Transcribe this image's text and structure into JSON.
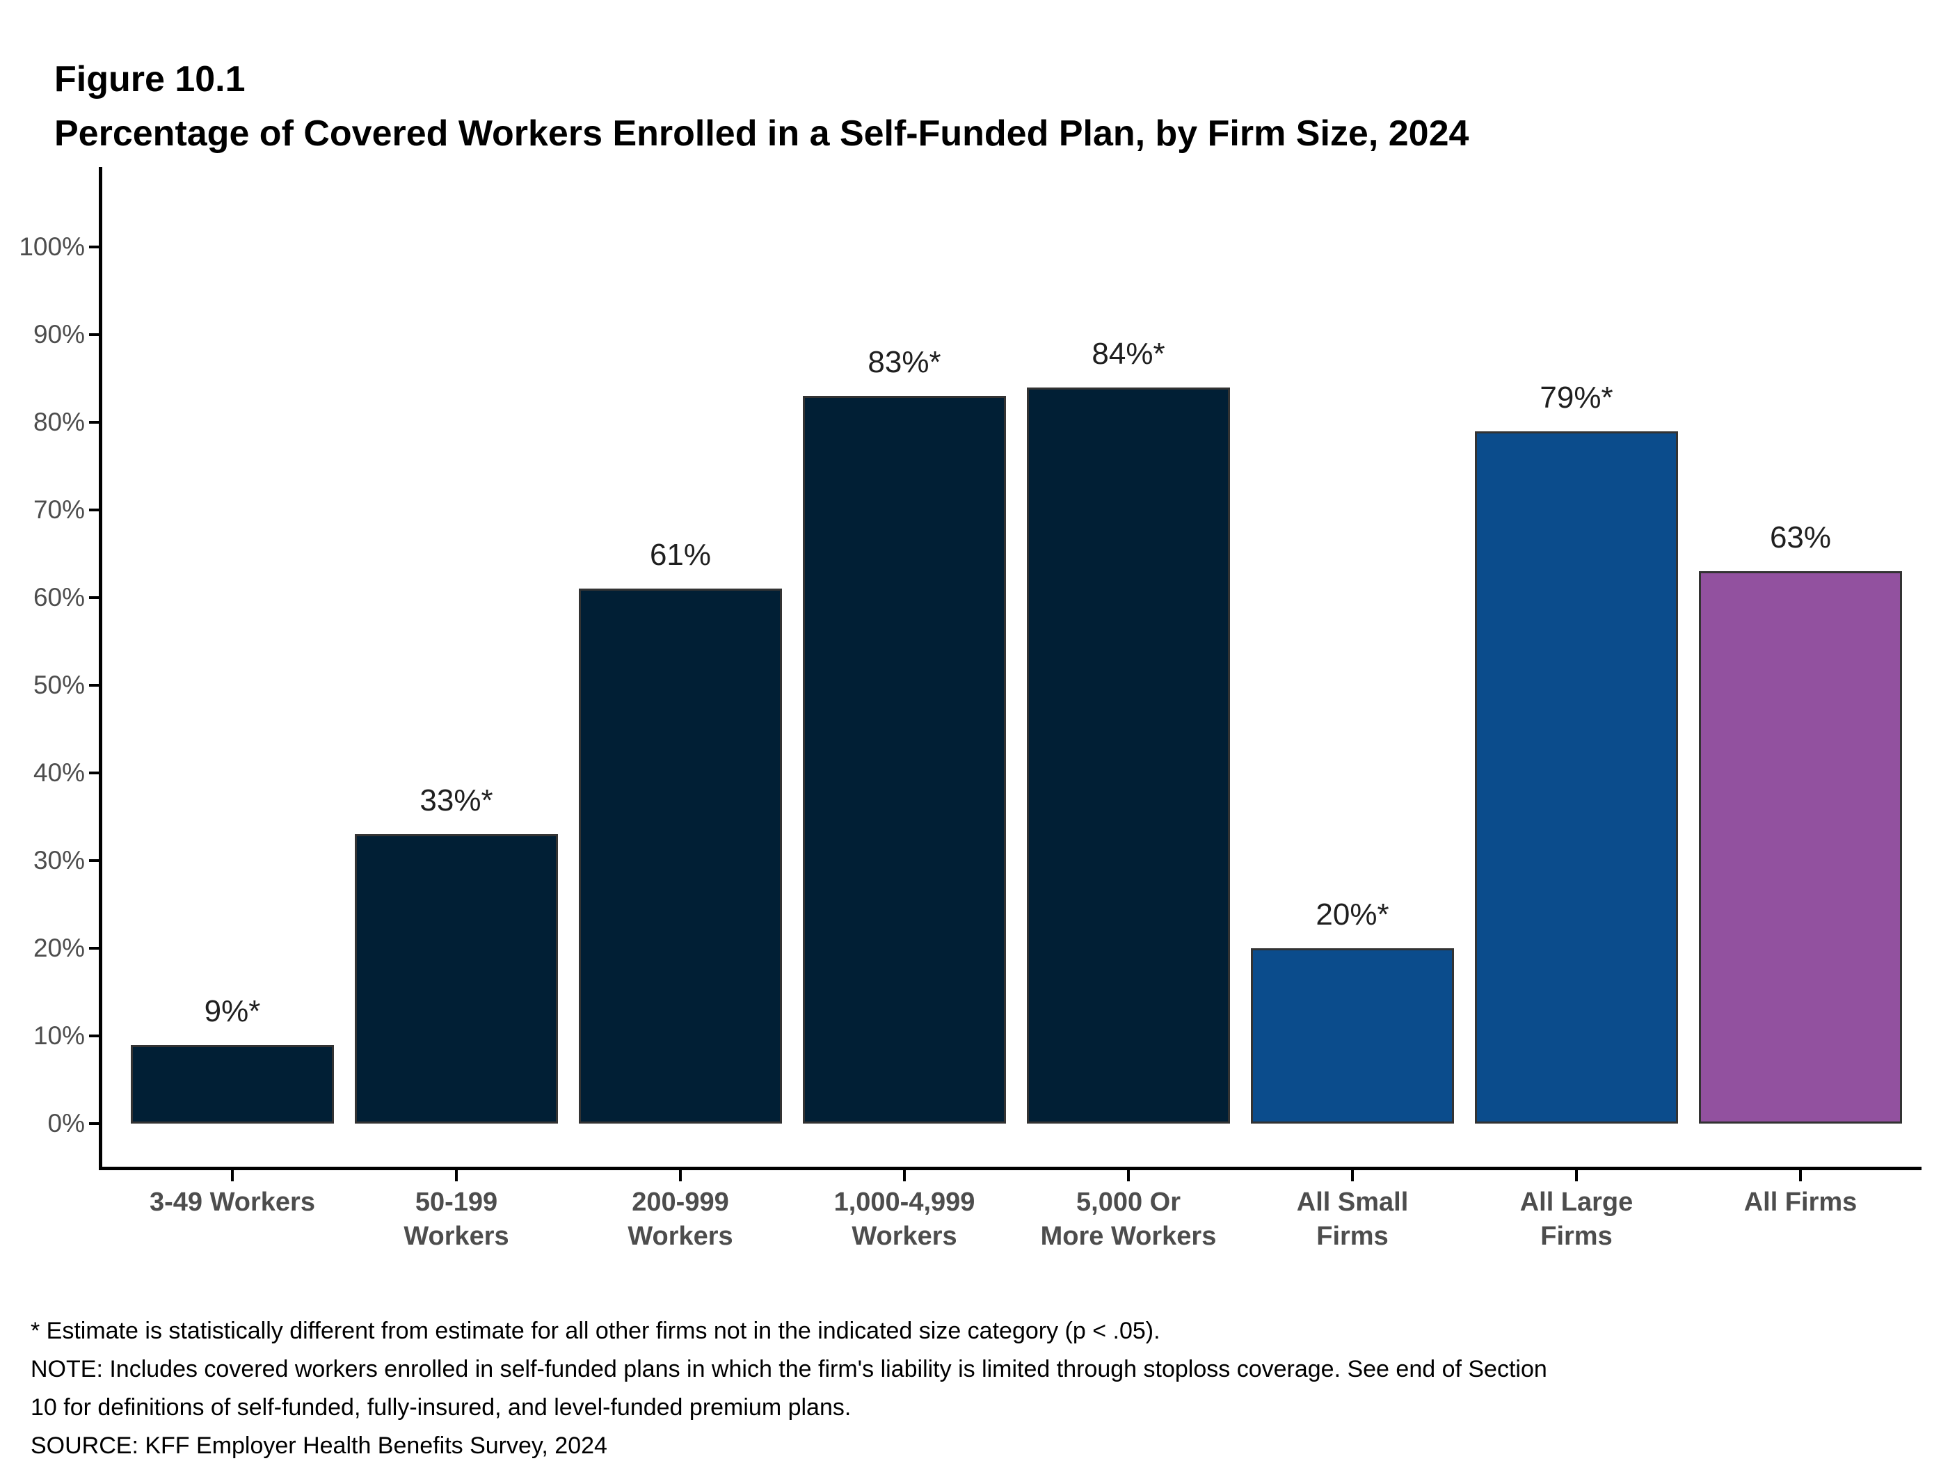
{
  "figure": {
    "label": "Figure 10.1",
    "title": "Percentage of Covered Workers Enrolled in a Self-Funded Plan, by Firm Size, 2024"
  },
  "chart_data": {
    "type": "bar",
    "title": "Percentage of Covered Workers Enrolled in a Self-Funded Plan, by Firm Size, 2024",
    "categories": [
      "3-49 Workers",
      "50-199\nWorkers",
      "200-999\nWorkers",
      "1,000-4,999\nWorkers",
      "5,000 Or\nMore Workers",
      "All Small\nFirms",
      "All Large\nFirms",
      "All Firms"
    ],
    "values": [
      9,
      33,
      61,
      83,
      84,
      20,
      79,
      63
    ],
    "value_labels": [
      "9%*",
      "33%*",
      "61%",
      "83%*",
      "84%*",
      "20%*",
      "79%*",
      "63%"
    ],
    "bar_color_keys": [
      "navy",
      "navy",
      "navy",
      "navy",
      "navy",
      "blue",
      "blue",
      "purple"
    ],
    "colors": {
      "navy": "#011f35",
      "blue": "#0b4c8c",
      "purple": "#92519f",
      "bar_outline": "#333333",
      "axis": "#000000",
      "tick_label": "#4d4d4d",
      "value_label": "#1f1f1f"
    },
    "xlabel": "",
    "ylabel": "",
    "ylim": [
      0,
      100
    ],
    "ytick_step": 10,
    "yticks": [
      "0%",
      "10%",
      "20%",
      "30%",
      "40%",
      "50%",
      "60%",
      "70%",
      "80%",
      "90%",
      "100%"
    ],
    "grid": false,
    "legend": "none"
  },
  "footnotes": {
    "lines": [
      "* Estimate is statistically different from estimate for all other firms not in the indicated size category (p < .05).",
      "NOTE: Includes covered workers enrolled in self-funded plans in which the firm's liability is limited through stoploss coverage. See end of Section",
      "10 for definitions of self-funded, fully-insured, and level-funded premium plans.",
      "SOURCE: KFF Employer Health Benefits Survey, 2024"
    ]
  }
}
